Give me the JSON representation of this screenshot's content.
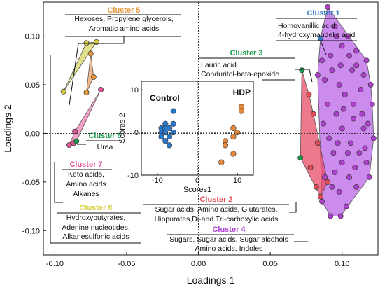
{
  "chart_data": {
    "type": "scatter",
    "xlabel": "Loadings 1",
    "ylabel": "Loadings 2",
    "xlim": [
      -0.108,
      0.125
    ],
    "ylim": [
      -0.125,
      0.135
    ],
    "x_ticks": [
      "-0.10",
      "-0.05",
      "0.00",
      "0.05",
      "0.10"
    ],
    "x_tick_values": [
      -0.1,
      -0.05,
      0.0,
      0.05,
      0.1
    ],
    "y_ticks": [
      "0.10",
      "0.05",
      "0.00",
      "-0.05",
      "-0.10"
    ],
    "y_tick_values": [
      0.1,
      0.05,
      0.0,
      -0.05,
      -0.1
    ],
    "zero_lines": "dotted",
    "clusters": [
      {
        "label": "Cluster 1",
        "color": "#3a7fc9",
        "annotation": [
          "Homovanillic acid",
          "4-hydroxymandelic acid"
        ],
        "hull_color": "#a84ee0",
        "points": [
          [
            0.085,
            0.098
          ]
        ]
      },
      {
        "label": "Cluster 2",
        "color": "#e14d55",
        "annotation": [
          "Sugar acids, Amino acids, Glutarates,",
          "Hippurates,Di-and Tri-carboxylic acids"
        ],
        "hull_color": "#e8455f",
        "points": [
          [
            0.077,
            0.04
          ],
          [
            0.08,
            0.02
          ],
          [
            0.083,
            -0.01
          ],
          [
            0.078,
            -0.035
          ],
          [
            0.082,
            -0.055
          ],
          [
            0.085,
            -0.065
          ],
          [
            0.09,
            -0.05
          ]
        ]
      },
      {
        "label": "Cluster 3",
        "color": "#1a9a50",
        "annotation": [
          "Lauric acid",
          "Conduritol-beta-epoxide"
        ],
        "points": [
          [
            0.072,
            0.065
          ],
          [
            0.071,
            -0.025
          ]
        ]
      },
      {
        "label": "Cluster 4",
        "color": "#b040d0",
        "annotation": [
          "Sugars, Sugar acids, Sugar alcohols",
          "Amino acids, Indoles"
        ],
        "hull_color": "#b860e8",
        "points": [
          [
            0.09,
            0.13
          ],
          [
            0.095,
            0.11
          ],
          [
            0.1,
            0.09
          ],
          [
            0.105,
            0.08
          ],
          [
            0.11,
            0.07
          ],
          [
            0.115,
            0.06
          ],
          [
            0.12,
            0.05
          ],
          [
            0.098,
            0.05
          ],
          [
            0.093,
            0.065
          ],
          [
            0.088,
            0.055
          ],
          [
            0.102,
            0.04
          ],
          [
            0.108,
            0.03
          ],
          [
            0.114,
            0.02
          ],
          [
            0.118,
            0.01
          ],
          [
            0.122,
            -0.005
          ],
          [
            0.096,
            0.02
          ],
          [
            0.09,
            0.03
          ],
          [
            0.1,
            0.005
          ],
          [
            0.106,
            -0.01
          ],
          [
            0.112,
            -0.02
          ],
          [
            0.117,
            -0.03
          ],
          [
            0.094,
            -0.02
          ],
          [
            0.1,
            -0.03
          ],
          [
            0.105,
            -0.045
          ],
          [
            0.11,
            -0.055
          ],
          [
            0.098,
            -0.06
          ],
          [
            0.103,
            -0.075
          ],
          [
            0.092,
            -0.085
          ],
          [
            0.086,
            -0.07
          ],
          [
            0.095,
            -0.04
          ],
          [
            0.119,
            -0.045
          ],
          [
            0.113,
            0.045
          ],
          [
            0.107,
            0.065
          ],
          [
            0.099,
            0.07
          ],
          [
            0.092,
            0.08
          ],
          [
            0.086,
            0.075
          ],
          [
            0.083,
            0.06
          ],
          [
            0.096,
            0.1
          ],
          [
            0.104,
            0.1
          ],
          [
            0.11,
            0.085
          ],
          [
            0.117,
            0.075
          ],
          [
            0.121,
            0.03
          ],
          [
            0.115,
            0.005
          ],
          [
            0.108,
            0.015
          ],
          [
            0.101,
            0.025
          ],
          [
            0.087,
            0.01
          ],
          [
            0.091,
            -0.005
          ],
          [
            0.097,
            -0.01
          ],
          [
            0.104,
            -0.02
          ],
          [
            0.109,
            -0.035
          ],
          [
            0.116,
            -0.015
          ],
          [
            0.088,
            -0.045
          ],
          [
            0.093,
            -0.055
          ],
          [
            0.099,
            -0.085
          ]
        ]
      },
      {
        "label": "Cluster 5",
        "color": "#e8963a",
        "annotation": [
          "Hexoses, Propylene glycerols,",
          "Aromatic amino acids"
        ],
        "hull_color": "#f0a060",
        "points": [
          [
            -0.075,
            0.082
          ],
          [
            -0.073,
            0.058
          ],
          [
            -0.078,
            0.042
          ]
        ]
      },
      {
        "label": "Cluster 6",
        "color": "#1a9a50",
        "annotation": [
          "Urea"
        ],
        "points": [
          [
            -0.085,
            -0.008
          ]
        ]
      },
      {
        "label": "Cluster 7",
        "color": "#e0549a",
        "annotation": [
          "Keto acids,",
          "Amino acids",
          "Alkanes"
        ],
        "hull_color": "#f07cb4",
        "points": [
          [
            -0.068,
            0.045
          ],
          [
            -0.086,
            0.002
          ],
          [
            -0.087,
            -0.01
          ],
          [
            -0.09,
            -0.012
          ]
        ]
      },
      {
        "label": "Cluster 8",
        "color": "#d8d040",
        "annotation": [
          "Hydroxybutyrates,",
          "Adenine nucleotides,",
          "Alkanesulfonic acids"
        ],
        "hull_color": "#d8d460",
        "points": [
          [
            -0.094,
            0.043
          ],
          [
            -0.078,
            0.093
          ],
          [
            -0.071,
            0.094
          ]
        ]
      }
    ],
    "inset": {
      "type": "scatter",
      "xlabel": "Scores1",
      "ylabel": "Scores 2",
      "xlim": [
        -14,
        14
      ],
      "ylim": [
        -10,
        12
      ],
      "x_ticks": [
        "-10",
        "0",
        "10"
      ],
      "y_ticks": [
        "10",
        "0",
        "-10"
      ],
      "series": [
        {
          "name": "Control",
          "color": "#2a78cc",
          "points": [
            [
              -6,
              5
            ],
            [
              -8,
              2
            ],
            [
              -6,
              2
            ],
            [
              -9,
              1
            ],
            [
              -8,
              1
            ],
            [
              -7,
              1
            ],
            [
              -9,
              0
            ],
            [
              -8,
              0
            ],
            [
              -6,
              0
            ],
            [
              -7,
              -1
            ],
            [
              -9,
              -1
            ],
            [
              -8,
              -2
            ],
            [
              -7,
              -3
            ]
          ]
        },
        {
          "name": "HDP",
          "color": "#e8883a",
          "points": [
            [
              11,
              6
            ],
            [
              11,
              5
            ],
            [
              9,
              1
            ],
            [
              10,
              0
            ],
            [
              9,
              -1
            ],
            [
              7,
              -2
            ],
            [
              7,
              -3
            ],
            [
              9,
              -5
            ],
            [
              6,
              -7
            ]
          ]
        }
      ]
    }
  }
}
